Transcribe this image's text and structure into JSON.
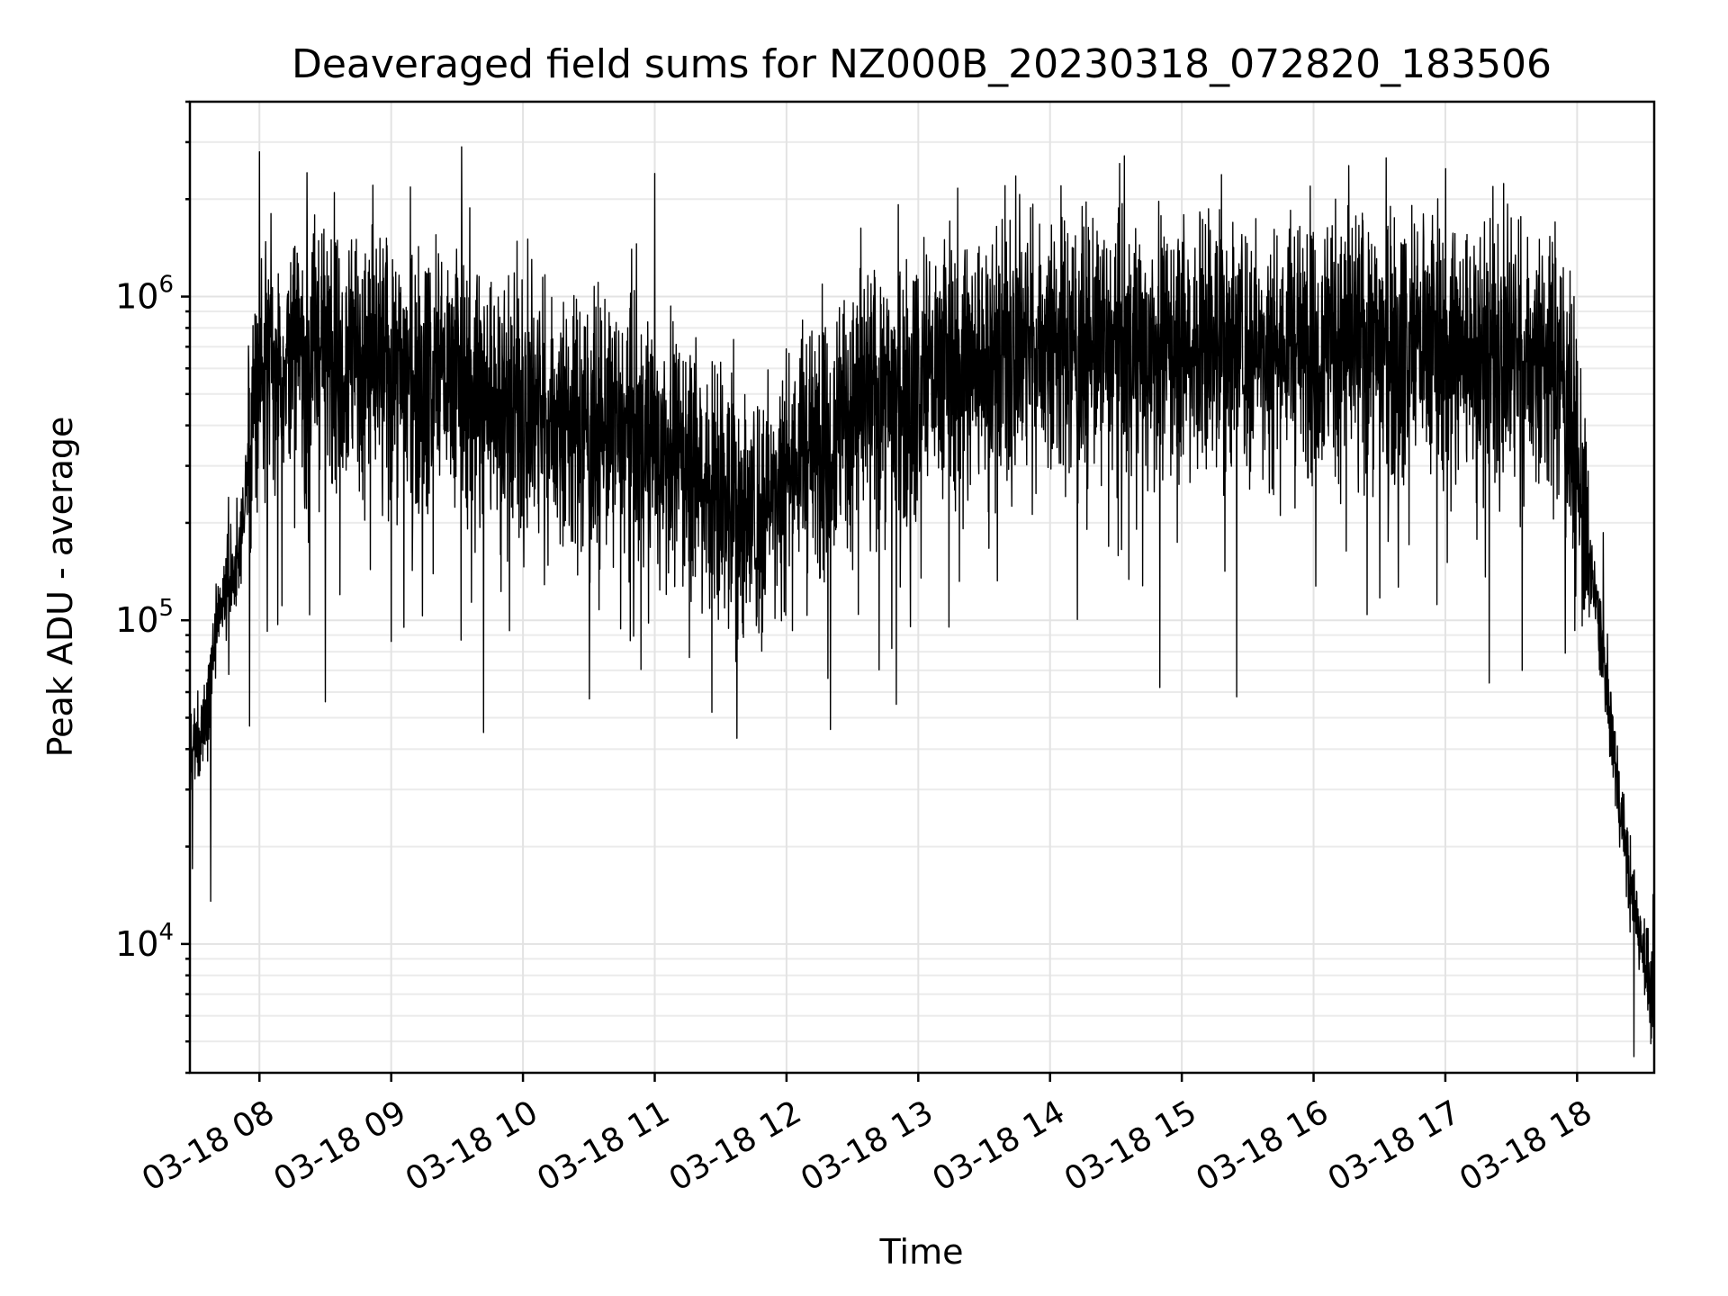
{
  "chart_data": {
    "type": "line",
    "title": "Deaveraged field sums for NZ000B_20230318_072820_183506",
    "xlabel": "Time",
    "ylabel": "Peak ADU - average",
    "x_scale": "time",
    "y_scale": "log",
    "xlim": [
      "2023-03-18 07:28:20",
      "2023-03-18 18:35:06"
    ],
    "ylim": [
      4000,
      4000000
    ],
    "grid": true,
    "legend": "none",
    "line_color": "#000000",
    "x_tick_labels": [
      "03-18 08",
      "03-18 09",
      "03-18 10",
      "03-18 11",
      "03-18 12",
      "03-18 13",
      "03-18 14",
      "03-18 15",
      "03-18 16",
      "03-18 17",
      "03-18 18"
    ],
    "y_tick_labels": [
      {
        "base": "10",
        "exp": "4",
        "value": 10000
      },
      {
        "base": "10",
        "exp": "5",
        "value": 100000
      },
      {
        "base": "10",
        "exp": "6",
        "value": 1000000
      }
    ],
    "series": [
      {
        "x": [
          "07:28",
          "07:35",
          "07:40",
          "07:45",
          "07:50",
          "07:55",
          "08:00",
          "08:15",
          "08:30",
          "08:45",
          "09:00",
          "09:15",
          "09:30",
          "09:45",
          "10:00",
          "10:15",
          "10:30",
          "10:45",
          "11:00",
          "11:15",
          "11:30",
          "11:45",
          "12:00",
          "12:15",
          "12:30",
          "12:45",
          "13:00",
          "13:15",
          "13:30",
          "13:45",
          "14:00",
          "14:15",
          "14:30",
          "14:45",
          "15:00",
          "15:15",
          "15:30",
          "15:45",
          "16:00",
          "16:15",
          "16:30",
          "16:45",
          "17:00",
          "17:15",
          "17:30",
          "17:45",
          "17:55",
          "18:00",
          "18:05",
          "18:10",
          "18:15",
          "18:20",
          "18:25",
          "18:30",
          "18:35"
        ],
        "y": [
          35000,
          50000,
          90000,
          120000,
          150000,
          300000,
          600000,
          650000,
          700000,
          650000,
          600000,
          580000,
          550000,
          500000,
          450000,
          420000,
          400000,
          380000,
          350000,
          320000,
          250000,
          200000,
          300000,
          350000,
          450000,
          500000,
          550000,
          600000,
          650000,
          700000,
          720000,
          700000,
          680000,
          700000,
          720000,
          750000,
          700000,
          700000,
          720000,
          720000,
          730000,
          700000,
          700000,
          700000,
          650000,
          650000,
          550000,
          300000,
          150000,
          100000,
          50000,
          25000,
          14000,
          10000,
          6000
        ],
        "spike_high": [
          2800000,
          2900000,
          2400000,
          2200000,
          2100000,
          2000000,
          1900000,
          1800000,
          1750000,
          1700000
        ],
        "spike_low": [
          68000,
          56000,
          45000,
          52000,
          46000,
          55000,
          62000,
          58000,
          64000,
          70000
        ]
      }
    ]
  }
}
